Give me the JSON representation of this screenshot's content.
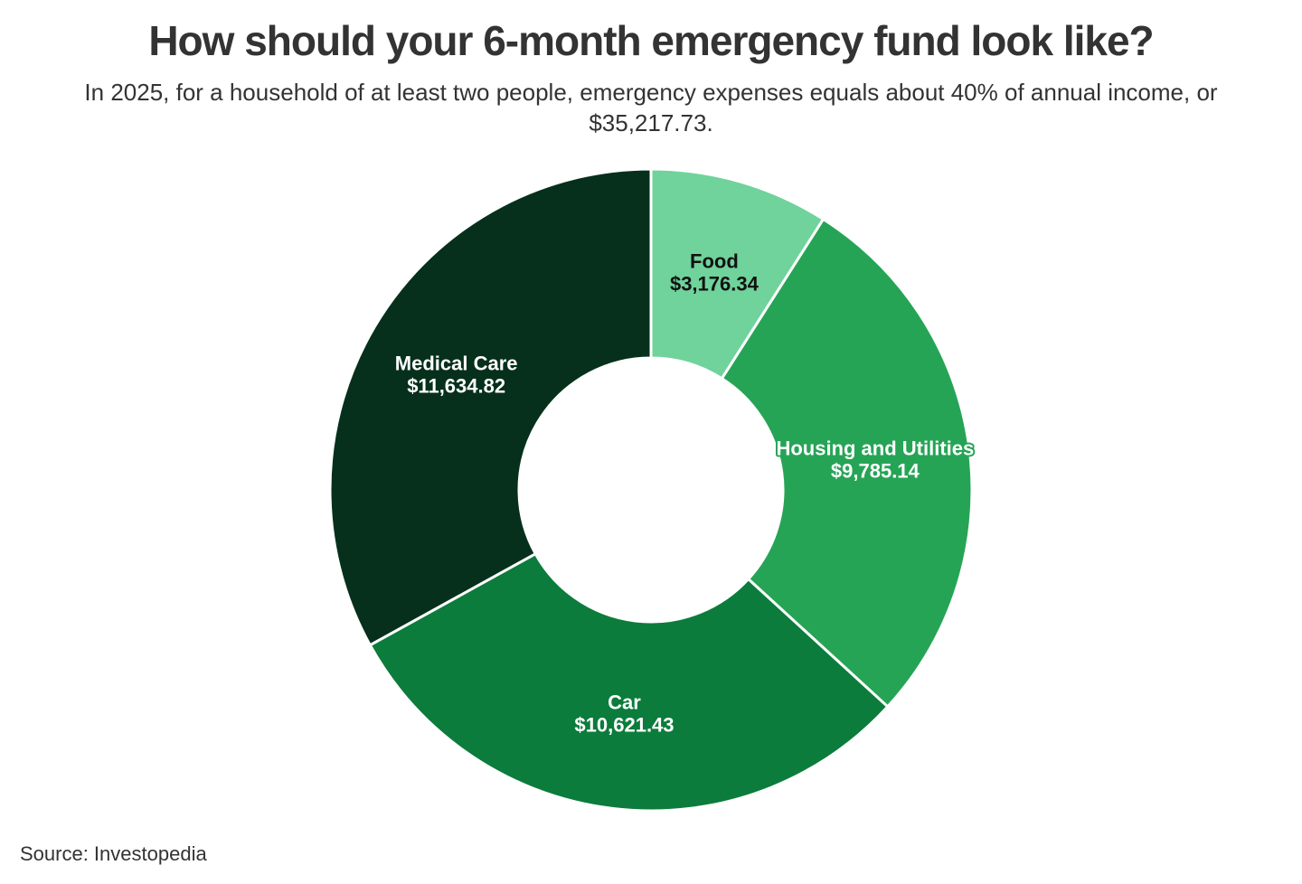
{
  "header": {
    "title": "How should your 6-month emergency fund look like?",
    "subtitle": "In 2025, for a household of at least two people, emergency expenses equals about 40% of annual income, or $35,217.73."
  },
  "footer": {
    "source": "Source: Investopedia"
  },
  "chart_data": {
    "type": "pie",
    "variant": "donut",
    "title": "How should your 6-month emergency fund look like?",
    "total_value": 35217.73,
    "total_display": "$35,217.73",
    "start_angle_deg": 0,
    "direction": "clockwise",
    "legend": "none",
    "layout": {
      "outer_radius": 355,
      "inner_radius": 146,
      "label_radius": 250,
      "slice_gap_color": "#ffffff",
      "slice_gap_width": 3
    },
    "segments": [
      {
        "label": "Food",
        "value": 3176.34,
        "display_value": "$3,176.34",
        "color": "#6fd39b",
        "text_color": "#111111"
      },
      {
        "label": "Housing and Utilities",
        "value": 9785.14,
        "display_value": "$9,785.14",
        "color": "#26a456",
        "text_color": "#ffffff"
      },
      {
        "label": "Car",
        "value": 10621.43,
        "display_value": "$10,621.43",
        "color": "#0b7c3b",
        "text_color": "#ffffff"
      },
      {
        "label": "Medical Care",
        "value": 11634.82,
        "display_value": "$11,634.82",
        "color": "#06301c",
        "text_color": "#ffffff"
      }
    ]
  }
}
